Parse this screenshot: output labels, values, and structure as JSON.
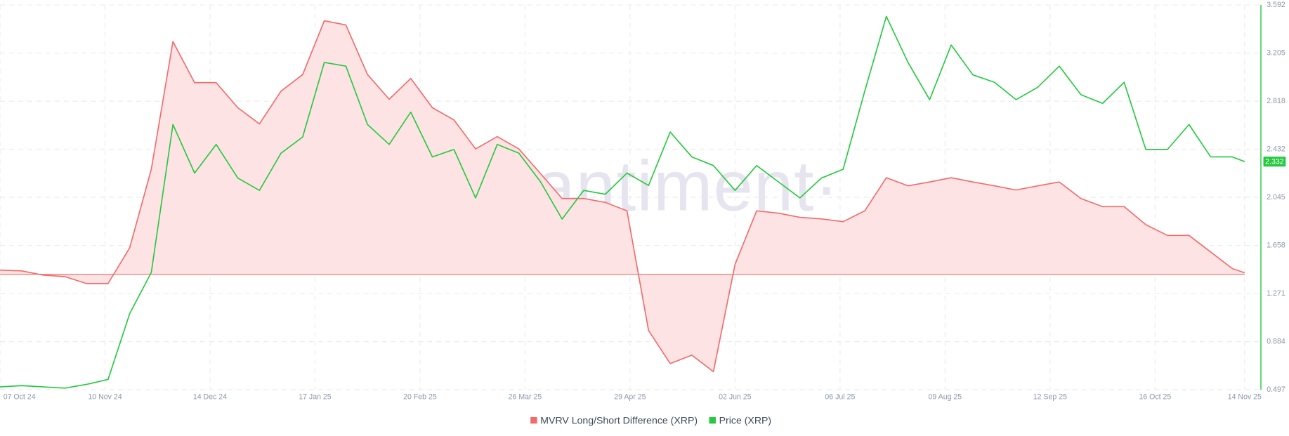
{
  "chart_data": {
    "type": "line",
    "watermark": "·santiment·",
    "x": [
      "2024-10-07",
      "2024-10-14",
      "2024-10-21",
      "2024-10-28",
      "2024-11-04",
      "2024-11-11",
      "2024-11-18",
      "2024-11-25",
      "2024-12-02",
      "2024-12-09",
      "2024-12-16",
      "2024-12-23",
      "2024-12-30",
      "2025-01-06",
      "2025-01-13",
      "2025-01-20",
      "2025-01-27",
      "2025-02-03",
      "2025-02-10",
      "2025-02-17",
      "2025-02-24",
      "2025-03-03",
      "2025-03-10",
      "2025-03-17",
      "2025-03-24",
      "2025-03-31",
      "2025-04-07",
      "2025-04-14",
      "2025-04-21",
      "2025-04-28",
      "2025-05-05",
      "2025-05-12",
      "2025-05-19",
      "2025-05-26",
      "2025-06-02",
      "2025-06-09",
      "2025-06-16",
      "2025-06-23",
      "2025-06-30",
      "2025-07-07",
      "2025-07-14",
      "2025-07-21",
      "2025-07-28",
      "2025-08-04",
      "2025-08-11",
      "2025-08-18",
      "2025-08-25",
      "2025-09-01",
      "2025-09-08",
      "2025-09-15",
      "2025-09-22",
      "2025-09-29",
      "2025-10-06",
      "2025-10-13",
      "2025-10-20",
      "2025-10-27",
      "2025-11-03",
      "2025-11-10",
      "2025-11-14"
    ],
    "xlim": [
      "2024-10-07",
      "2025-11-19"
    ],
    "xticks": [
      {
        "value": "2024-10-07",
        "label": "07 Oct 24"
      },
      {
        "value": "2024-11-10",
        "label": "10 Nov 24"
      },
      {
        "value": "2024-12-14",
        "label": "14 Dec 24"
      },
      {
        "value": "2025-01-17",
        "label": "17 Jan 25"
      },
      {
        "value": "2025-02-20",
        "label": "20 Feb 25"
      },
      {
        "value": "2025-03-26",
        "label": "26 Mar 25"
      },
      {
        "value": "2025-04-29",
        "label": "29 Apr 25"
      },
      {
        "value": "2025-06-02",
        "label": "02 Jun 25"
      },
      {
        "value": "2025-07-06",
        "label": "06 Jul 25"
      },
      {
        "value": "2025-08-09",
        "label": "09 Aug 25"
      },
      {
        "value": "2025-09-12",
        "label": "12 Sep 25"
      },
      {
        "value": "2025-10-16",
        "label": "16 Oct 25"
      },
      {
        "value": "2025-11-14",
        "label": "14 Nov 25"
      }
    ],
    "ylim": [
      -30,
      70
    ],
    "y2lim": [
      0.497,
      3.592
    ],
    "y2ticks": [
      0.497,
      0.884,
      1.271,
      1.658,
      2.045,
      2.432,
      2.818,
      3.205,
      3.592
    ],
    "grid": true,
    "legend": "bottom",
    "series": [
      {
        "name": "MVRV Long/Short Difference (XRP)",
        "color": "#f26b6b",
        "fill": "#fde3e3",
        "axis": "y",
        "values": [
          1.1,
          0.9,
          -0.2,
          -0.6,
          -2.4,
          -2.4,
          6.9,
          27.3,
          60.5,
          49.8,
          49.8,
          43.3,
          39.1,
          47.6,
          51.9,
          65.9,
          64.8,
          51.9,
          45.5,
          50.9,
          43.3,
          40.1,
          32.6,
          35.8,
          32.6,
          26.2,
          19.7,
          19.7,
          18.7,
          16.5,
          -14.6,
          -23.2,
          -21.0,
          -25.3,
          2.6,
          16.5,
          15.9,
          14.8,
          14.4,
          13.7,
          16.5,
          25.1,
          23.0,
          24.0,
          25.1,
          24.0,
          23.0,
          21.9,
          23.0,
          24.0,
          19.7,
          17.6,
          17.6,
          12.9,
          10.1,
          10.1,
          5.8,
          1.5,
          0.4
        ]
      },
      {
        "name": "Price (XRP)",
        "color": "#26c940",
        "axis": "y2",
        "values": [
          0.52,
          0.53,
          0.52,
          0.51,
          0.54,
          0.58,
          1.11,
          1.44,
          2.63,
          2.24,
          2.47,
          2.2,
          2.1,
          2.4,
          2.53,
          3.13,
          3.1,
          2.63,
          2.47,
          2.73,
          2.37,
          2.43,
          2.04,
          2.47,
          2.4,
          2.17,
          1.87,
          2.1,
          2.07,
          2.24,
          2.14,
          2.57,
          2.37,
          2.3,
          2.1,
          2.3,
          2.17,
          2.04,
          2.2,
          2.27,
          2.9,
          3.5,
          3.13,
          2.83,
          3.27,
          3.03,
          2.97,
          2.83,
          2.93,
          3.1,
          2.87,
          2.8,
          2.97,
          2.43,
          2.43,
          2.63,
          2.37,
          2.37,
          2.332
        ]
      }
    ]
  }
}
